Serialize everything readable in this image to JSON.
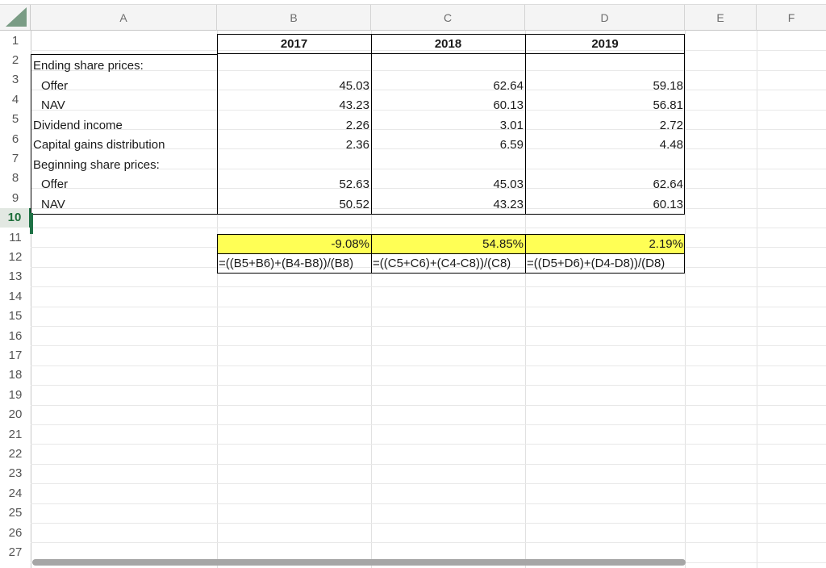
{
  "columns": [
    "A",
    "B",
    "C",
    "D",
    "E",
    "F"
  ],
  "rows": [
    "1",
    "2",
    "3",
    "4",
    "5",
    "6",
    "7",
    "8",
    "9",
    "10",
    "11",
    "12",
    "13",
    "14",
    "15",
    "16",
    "17",
    "18",
    "19",
    "20",
    "21",
    "22",
    "23",
    "24",
    "25",
    "26",
    "27"
  ],
  "header": {
    "b": "2017",
    "c": "2018",
    "d": "2019"
  },
  "labels": {
    "r2": "Ending share prices:",
    "r3": "Offer",
    "r4": "NAV",
    "r5": "Dividend income",
    "r6": "Capital gains distribution",
    "r7": "Beginning share prices:",
    "r8": "Offer",
    "r9": "NAV"
  },
  "values": {
    "r3": [
      "45.03",
      "62.64",
      "59.18"
    ],
    "r4": [
      "43.23",
      "60.13",
      "56.81"
    ],
    "r5": [
      "2.26",
      "3.01",
      "2.72"
    ],
    "r6": [
      "2.36",
      "6.59",
      "4.48"
    ],
    "r8": [
      "52.63",
      "45.03",
      "62.64"
    ],
    "r9": [
      "50.52",
      "43.23",
      "60.13"
    ]
  },
  "results": [
    "-9.08%",
    "54.85%",
    "2.19%"
  ],
  "formulas": [
    "=((B5+B6)+(B4-B8))/(B8)",
    "=((C5+C6)+(C4-C8))/(C8)",
    "=((D5+D6)+(D4-D8))/(D8)"
  ],
  "active_row": "10",
  "colors": {
    "highlight": "#ffff55",
    "accent": "#1e7145"
  }
}
